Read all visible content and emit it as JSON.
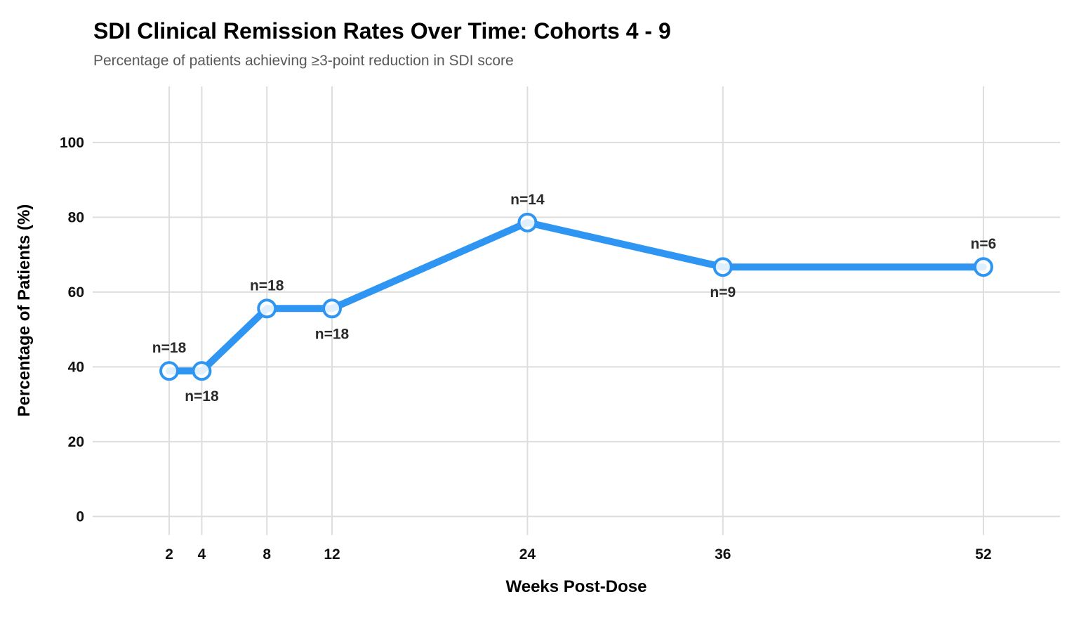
{
  "chart_data": {
    "type": "line",
    "title": "SDI Clinical Remission Rates Over Time: Cohorts 4 - 9",
    "subtitle": "Percentage of patients achieving ≥3-point reduction in SDI score",
    "xlabel": "Weeks Post-Dose",
    "ylabel": "Percentage of Patients (%)",
    "x": [
      2,
      4,
      8,
      12,
      24,
      36,
      52
    ],
    "series": [
      {
        "values": [
          38.9,
          38.9,
          55.6,
          55.6,
          78.6,
          66.7,
          66.7
        ]
      }
    ],
    "point_labels": [
      "n=18",
      "n=18",
      "n=18",
      "n=18",
      "n=14",
      "n=9",
      "n=6"
    ],
    "point_label_positions": [
      "above",
      "below",
      "above",
      "below",
      "above",
      "below",
      "above"
    ],
    "x_ticks": [
      "2",
      "4",
      "8",
      "12",
      "24",
      "36",
      "52"
    ],
    "x_tick_values": [
      2,
      4,
      8,
      12,
      24,
      36,
      52
    ],
    "y_ticks": [
      "0",
      "20",
      "40",
      "60",
      "80",
      "100"
    ],
    "y_tick_values": [
      0,
      20,
      40,
      60,
      80,
      100
    ],
    "xlim": [
      -2.7,
      56.7
    ],
    "ylim": [
      -5,
      115
    ],
    "grid": true,
    "legend": "none",
    "colors": {
      "line": "#2E96F2",
      "marker_stroke": "#2E96F2",
      "marker_fill": "#FFFFFF",
      "grid": "#DEDEDE",
      "title": "#000000",
      "subtitle": "#595959",
      "tick": "#111111",
      "point_label": "#2B2B2B"
    }
  }
}
